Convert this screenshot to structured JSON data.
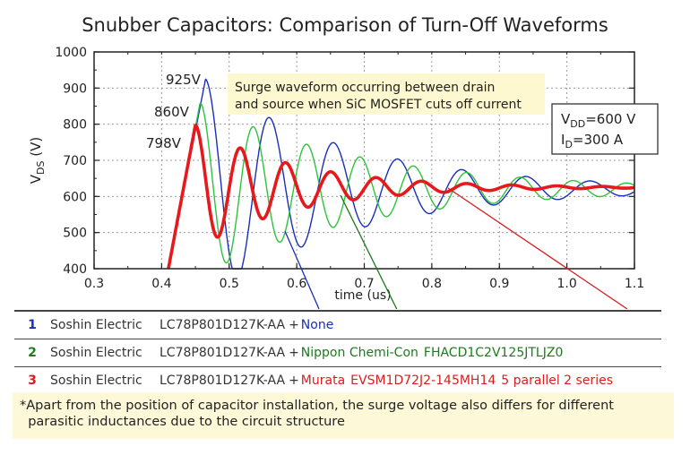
{
  "chart_data": {
    "type": "line",
    "title": "Snubber Capacitors:  Comparison of Turn-Off Waveforms",
    "xlabel": "time (us)",
    "ylabel_main": "V",
    "ylabel_sub": "DS",
    "ylabel_unit": " (V)",
    "xlim": [
      0.3,
      1.1
    ],
    "ylim": [
      400,
      1000
    ],
    "xticks": [
      "0.3",
      "0.4",
      "0.5",
      "0.6",
      "0.7",
      "0.8",
      "0.9",
      "1.0",
      "1.1"
    ],
    "yticks": [
      "400",
      "500",
      "600",
      "700",
      "800",
      "900",
      "1000"
    ],
    "grid": true,
    "series": [
      {
        "key": "blue",
        "color": "#1a2fb8",
        "start_x": 0.41,
        "peak_x": 0.465,
        "peak_y": 925,
        "final_y": 620,
        "period": 0.095,
        "decay": 0.22,
        "peak_label": "925V"
      },
      {
        "key": "green",
        "color": "#2cc43a",
        "start_x": 0.41,
        "peak_x": 0.457,
        "peak_y": 860,
        "final_y": 620,
        "period": 0.079,
        "decay": 0.24,
        "peak_label": "860V"
      },
      {
        "key": "red",
        "color": "#e8191c",
        "start_x": 0.41,
        "peak_x": 0.45,
        "peak_y": 798,
        "final_y": 625,
        "period": 0.067,
        "decay": 0.145,
        "peak_label": "798V"
      }
    ],
    "annotation_top": [
      "Surge waveform occurring between drain",
      "and source when SiC MOSFET cuts off current"
    ],
    "conditions": {
      "vdd_main": "V",
      "vdd_sub": "DD",
      "vdd_value": "=600 V",
      "id_main": "I",
      "id_sub": "D",
      "id_value": "=300 A"
    }
  },
  "legend": [
    {
      "num": "1",
      "manufacturer": "Soshin Electric",
      "part": "LC78P801D127K-AA",
      "plus": "+",
      "extra": "None",
      "color": "#1a2fb8"
    },
    {
      "num": "2",
      "manufacturer": "Soshin Electric",
      "part": "LC78P801D127K-AA",
      "plus": "+",
      "extra": "Nippon Chemi-Con",
      "extra2": "FHACD1C2V125JTLJZ0",
      "color": "#1e7a1e"
    },
    {
      "num": "3",
      "manufacturer": "Soshin Electric",
      "part": "LC78P801D127K-AA",
      "plus": "+",
      "extra": "Murata",
      "extra2": "EVSM1D72J2-145MH14",
      "extra3": "5 parallel 2 series",
      "color": "#d81e1e"
    }
  ],
  "note": {
    "line1": "*Apart from the position of capacitor installation, the surge voltage also differs for  different",
    "line2": "  parasitic inductances due to the circuit structure"
  }
}
